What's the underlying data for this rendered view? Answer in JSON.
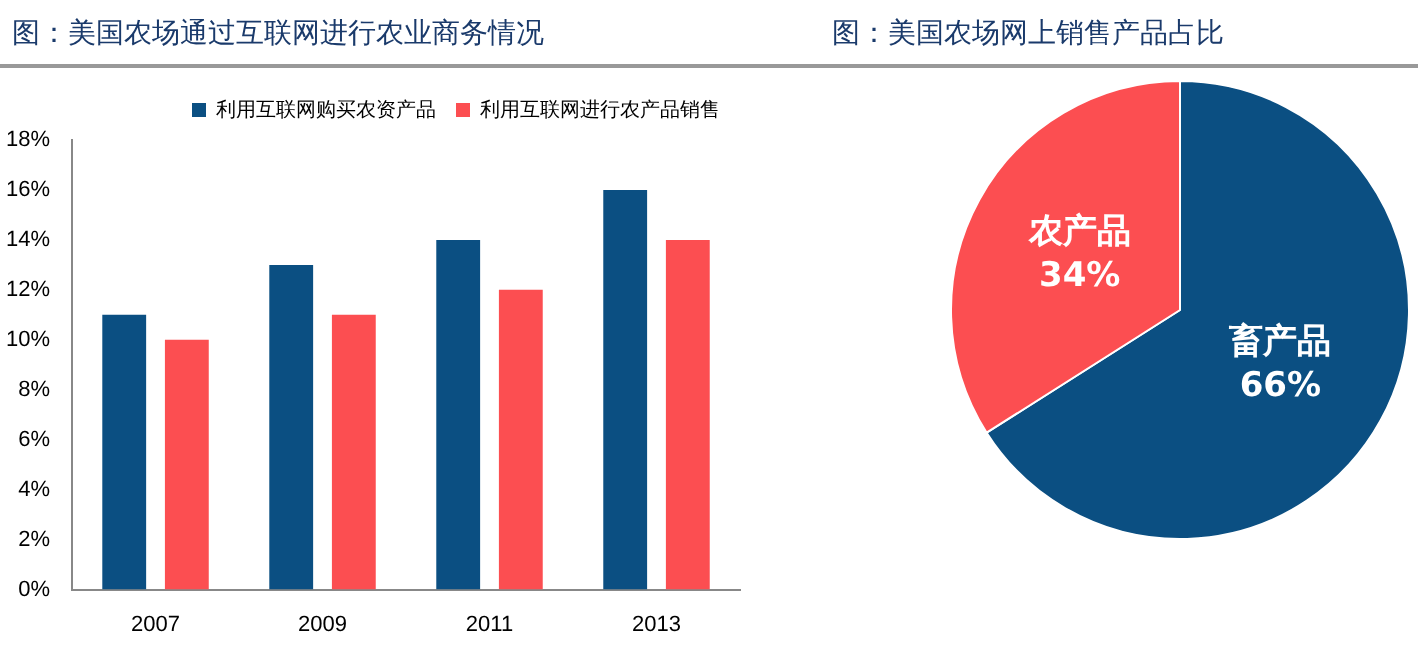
{
  "chart_data": [
    {
      "type": "bar",
      "title": "图：美国农场通过互联网进行农业商务情况",
      "categories": [
        "2007",
        "2009",
        "2011",
        "2013"
      ],
      "series": [
        {
          "name": "利用互联网购买农资产品",
          "color": "#0b4f82",
          "values": [
            11,
            13,
            14,
            16
          ]
        },
        {
          "name": "利用互联网进行农产品销售",
          "color": "#fc4e51",
          "values": [
            10,
            11,
            12,
            14
          ]
        }
      ],
      "ylim": [
        0,
        18
      ],
      "yticks": [
        {
          "value": 0,
          "label": "0%"
        },
        {
          "value": 2,
          "label": "2%"
        },
        {
          "value": 4,
          "label": "4%"
        },
        {
          "value": 6,
          "label": "6%"
        },
        {
          "value": 8,
          "label": "8%"
        },
        {
          "value": 10,
          "label": "10%"
        },
        {
          "value": 12,
          "label": "12%"
        },
        {
          "value": 14,
          "label": "14%"
        },
        {
          "value": 16,
          "label": "16%"
        },
        {
          "value": 18,
          "label": "18%"
        }
      ],
      "grid": false,
      "legend": "top"
    },
    {
      "type": "pie",
      "title": "图：美国农场网上销售产品占比",
      "categories": [
        "畜产品",
        "农产品"
      ],
      "values": [
        66,
        34
      ],
      "colors": [
        "#0b4f82",
        "#fc4e51"
      ],
      "value_labels": [
        "66%",
        "34%"
      ],
      "legend": false
    }
  ]
}
